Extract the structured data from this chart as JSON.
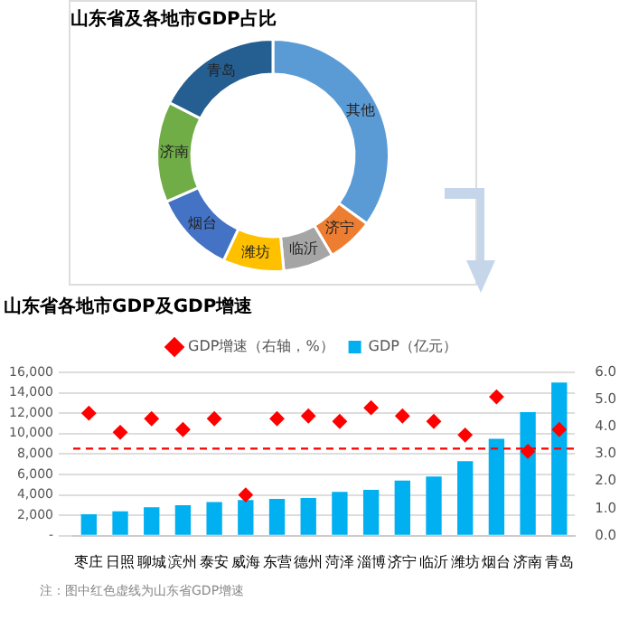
{
  "chart_data": [
    {
      "type": "donut",
      "title": "山东省及各地市GDP占比",
      "categories": [
        "其他",
        "济宁",
        "临沂",
        "潍坊",
        "烟台",
        "济南",
        "青岛"
      ],
      "values": [
        35,
        6.5,
        7,
        8.5,
        11.5,
        14,
        17.5
      ],
      "colors": [
        "#5b9bd5",
        "#ed7d31",
        "#a5a5a5",
        "#ffc000",
        "#4472c4",
        "#70ad47",
        "#255e91"
      ]
    },
    {
      "type": "bar",
      "title": "山东省各地市GDP及GDP增速",
      "categories": [
        "枣庄",
        "日照",
        "聊城",
        "滨州",
        "泰安",
        "威海",
        "东营",
        "德州",
        "菏泽",
        "淄博",
        "济宁",
        "临沂",
        "潍坊",
        "烟台",
        "济南",
        "青岛"
      ],
      "series": [
        {
          "name": "GDP（亿元）",
          "type": "bar",
          "color": "#00b0f0",
          "values": [
            2100,
            2400,
            2800,
            3000,
            3300,
            3500,
            3600,
            3700,
            4300,
            4500,
            5400,
            5800,
            7300,
            9500,
            12100,
            15000
          ]
        },
        {
          "name": "GDP增速（右轴，%）",
          "type": "scatter",
          "axis": "y2",
          "color": "#ff0000",
          "marker": "diamond",
          "values": [
            4.5,
            3.8,
            4.3,
            3.9,
            4.3,
            1.5,
            4.3,
            4.4,
            4.2,
            4.7,
            4.4,
            4.2,
            3.7,
            5.1,
            3.1,
            3.9
          ]
        }
      ],
      "ylim": [
        0,
        16000
      ],
      "yticks": [
        {
          "value": 0,
          "label": "-"
        },
        {
          "value": 2000,
          "label": "2,000"
        },
        {
          "value": 4000,
          "label": "4,000"
        },
        {
          "value": 6000,
          "label": "6,000"
        },
        {
          "value": 8000,
          "label": "8,000"
        },
        {
          "value": 10000,
          "label": "10,000"
        },
        {
          "value": 12000,
          "label": "12,000"
        },
        {
          "value": 14000,
          "label": "14,000"
        },
        {
          "value": 16000,
          "label": "16,000"
        }
      ],
      "y2lim": [
        0,
        6
      ],
      "y2ticks": [
        {
          "value": 0,
          "label": "0.0"
        },
        {
          "value": 1,
          "label": "1.0"
        },
        {
          "value": 2,
          "label": "2.0"
        },
        {
          "value": 3,
          "label": "3.0"
        },
        {
          "value": 4,
          "label": "4.0"
        },
        {
          "value": 5,
          "label": "5.0"
        },
        {
          "value": 6,
          "label": "6.0"
        }
      ],
      "grid": "y",
      "legend": "top",
      "ref_lines": [
        {
          "axis": "y2",
          "value": 3.2,
          "color": "#ff0000",
          "line_style": "dashed"
        }
      ],
      "annotations": [
        "注：图中红色虚线为山东省GDP增速"
      ]
    }
  ]
}
